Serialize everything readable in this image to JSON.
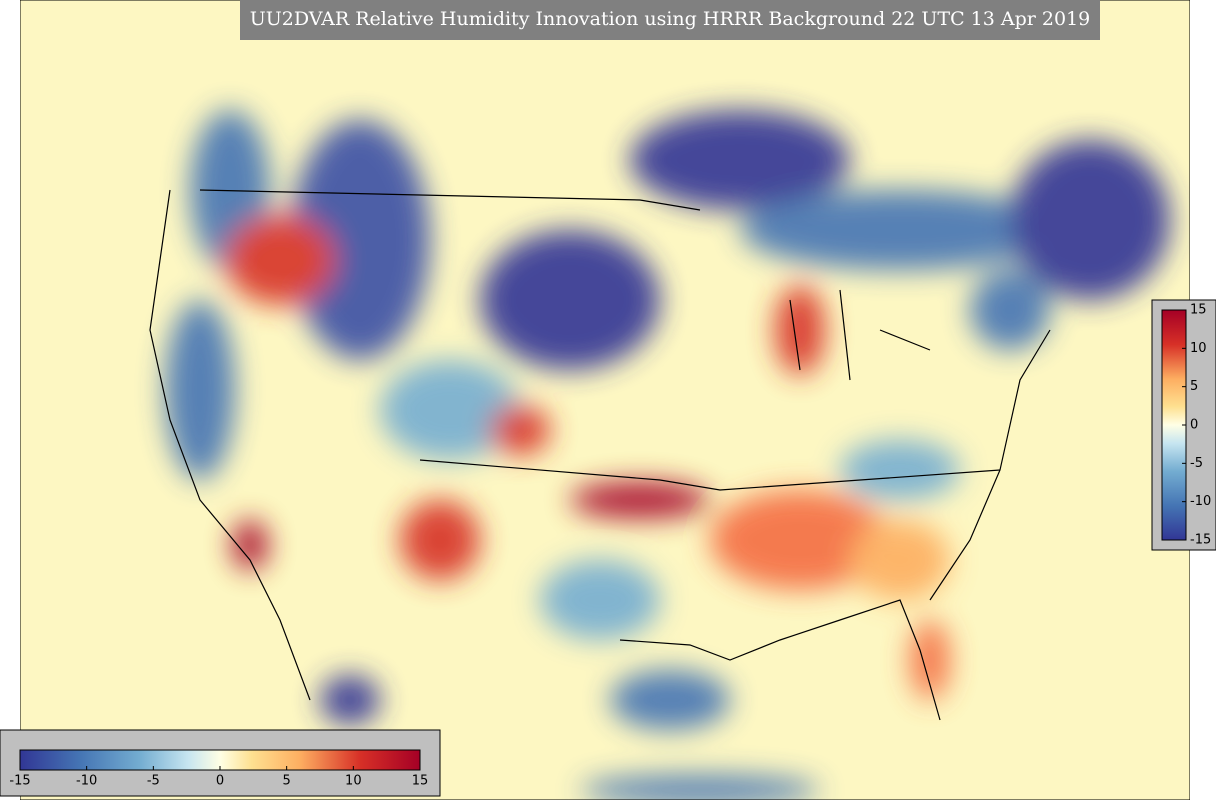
{
  "title": "UU2DVAR Relative Humidity Innovation using HRRR Background 22 UTC 13 Apr 2019",
  "colorbar_horizontal": {
    "lim": [
      -15,
      15
    ],
    "ticks": [
      -15,
      -10,
      -5,
      0,
      5,
      10,
      15
    ]
  },
  "colorbar_vertical": {
    "lim": [
      -15,
      15
    ],
    "ticks": [
      -15,
      -10,
      -5,
      0,
      5,
      10,
      15
    ]
  }
}
